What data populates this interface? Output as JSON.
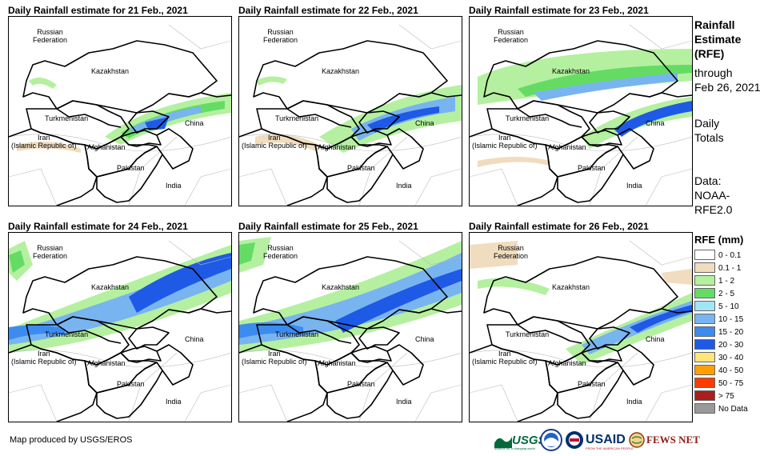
{
  "panels": [
    {
      "title": "Daily Rainfall estimate for 21 Feb., 2021"
    },
    {
      "title": "Daily Rainfall estimate for 22 Feb., 2021"
    },
    {
      "title": "Daily Rainfall estimate for 23 Feb., 2021"
    },
    {
      "title": "Daily Rainfall estimate for 24 Feb., 2021"
    },
    {
      "title": "Daily Rainfall estimate for 25 Feb., 2021"
    },
    {
      "title": "Daily Rainfall estimate for 26 Feb., 2021"
    }
  ],
  "map_labels": {
    "russia_1": "Russian",
    "russia_2": "Federation",
    "kazakhstan": "Kazakhstan",
    "turkmenistan": "Turkmenistan",
    "iran_1": "Iran",
    "iran_2": "(Islamic Republic of)",
    "afghanistan": "Afghanistan",
    "pakistan": "Pakistan",
    "china": "China",
    "india": "India"
  },
  "side_info": {
    "line1": "Rainfall",
    "line2": "Estimate",
    "line3": "(RFE)",
    "line4": "through",
    "line5": "Feb 26, 2021",
    "line6": "Daily",
    "line7": "Totals",
    "line8": "Data:",
    "line9": "NOAA-",
    "line10": "RFE2.0"
  },
  "legend": {
    "title": "RFE (mm)",
    "items": [
      {
        "label": "0 - 0.1",
        "color": "#ffffff"
      },
      {
        "label": "0.1 - 1",
        "color": "#f0dcbe"
      },
      {
        "label": "1 - 2",
        "color": "#b4f0a0"
      },
      {
        "label": "2 - 5",
        "color": "#64dc64"
      },
      {
        "label": "5 - 10",
        "color": "#a0e6f5"
      },
      {
        "label": "10 - 15",
        "color": "#78b4f0"
      },
      {
        "label": "15 - 20",
        "color": "#3c8cf0"
      },
      {
        "label": "20 - 30",
        "color": "#1e5ae6"
      },
      {
        "label": "30 - 40",
        "color": "#ffe678"
      },
      {
        "label": "40 - 50",
        "color": "#ffa000"
      },
      {
        "label": "50 - 75",
        "color": "#ff3c00"
      },
      {
        "label": "> 75",
        "color": "#aa1e1e"
      },
      {
        "label": "No Data",
        "color": "#999999"
      }
    ]
  },
  "credit": "Map produced by USGS/EROS",
  "logos": {
    "usgs": "USGS",
    "usgs_tagline": "science for a changing world",
    "usaid": "USAID",
    "usaid_tagline": "FROM THE AMERICAN PEOPLE",
    "fewsnet": "FEWS NET"
  }
}
